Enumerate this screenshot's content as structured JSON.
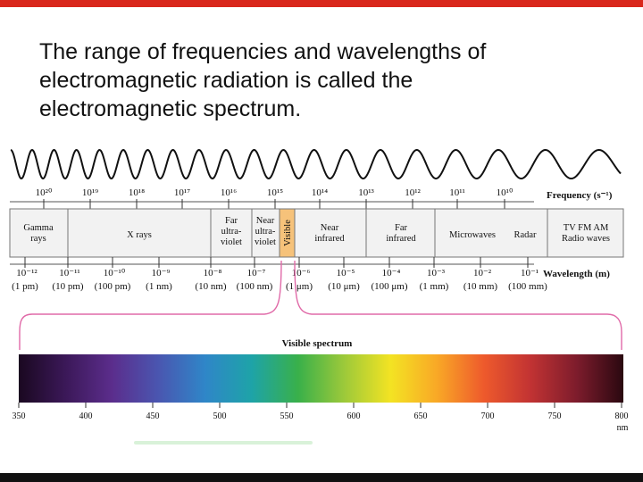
{
  "slide": {
    "heading_lines": [
      "The range of frequencies and wavelengths of",
      "electromagnetic radiation is called the",
      "electromagnetic spectrum."
    ]
  },
  "diagram": {
    "frequency_axis": {
      "label": "Frequency (s⁻¹)",
      "ticks": [
        "10²⁰",
        "10¹⁹",
        "10¹⁸",
        "10¹⁷",
        "10¹⁶",
        "10¹⁵",
        "10¹⁴",
        "10¹³",
        "10¹²",
        "10¹¹",
        "10¹⁰"
      ]
    },
    "bands": [
      {
        "lines": [
          "Gamma",
          "rays"
        ]
      },
      {
        "lines": [
          "X rays"
        ]
      },
      {
        "lines": [
          "Far",
          "ultra-",
          "violet"
        ]
      },
      {
        "lines": [
          "Near",
          "ultra-",
          "violet"
        ]
      },
      {
        "lines": [
          "Visible"
        ]
      },
      {
        "lines": [
          "Near",
          "infrared"
        ]
      },
      {
        "lines": [
          "Far",
          "infrared"
        ]
      },
      {
        "lines": [
          "Microwaves"
        ]
      },
      {
        "lines": [
          "Radar"
        ]
      },
      {
        "lines": [
          "TV FM AM",
          "Radio waves"
        ]
      }
    ],
    "wavelength_axis": {
      "label": "Wavelength (m)",
      "ticks": [
        {
          "exp": "10⁻¹²",
          "unit": "(1 pm)"
        },
        {
          "exp": "10⁻¹¹",
          "unit": "(10 pm)"
        },
        {
          "exp": "10⁻¹⁰",
          "unit": "(100 pm)"
        },
        {
          "exp": "10⁻⁹",
          "unit": "(1 nm)"
        },
        {
          "exp": "10⁻⁸",
          "unit": "(10 nm)"
        },
        {
          "exp": "10⁻⁷",
          "unit": "(100 nm)"
        },
        {
          "exp": "10⁻⁶",
          "unit": "(1 μm)"
        },
        {
          "exp": "10⁻⁵",
          "unit": "(10 μm)"
        },
        {
          "exp": "10⁻⁴",
          "unit": "(100 μm)"
        },
        {
          "exp": "10⁻³",
          "unit": "(1 mm)"
        },
        {
          "exp": "10⁻²",
          "unit": "(10 mm)"
        },
        {
          "exp": "10⁻¹",
          "unit": "(100 mm)"
        }
      ]
    },
    "visible_spectrum": {
      "title": "Visible spectrum",
      "nm_ticks": [
        "350",
        "400",
        "450",
        "500",
        "550",
        "600",
        "650",
        "700",
        "750",
        "800"
      ],
      "unit": "nm",
      "gradient_colors": [
        "#1a0820",
        "#3b1858",
        "#5b2d8c",
        "#4a56b0",
        "#2f86c8",
        "#1ea3a8",
        "#39b04a",
        "#9cc93a",
        "#f3e323",
        "#f9a826",
        "#ee5a2c",
        "#c23333",
        "#7d1c2c",
        "#2a0810"
      ]
    }
  }
}
